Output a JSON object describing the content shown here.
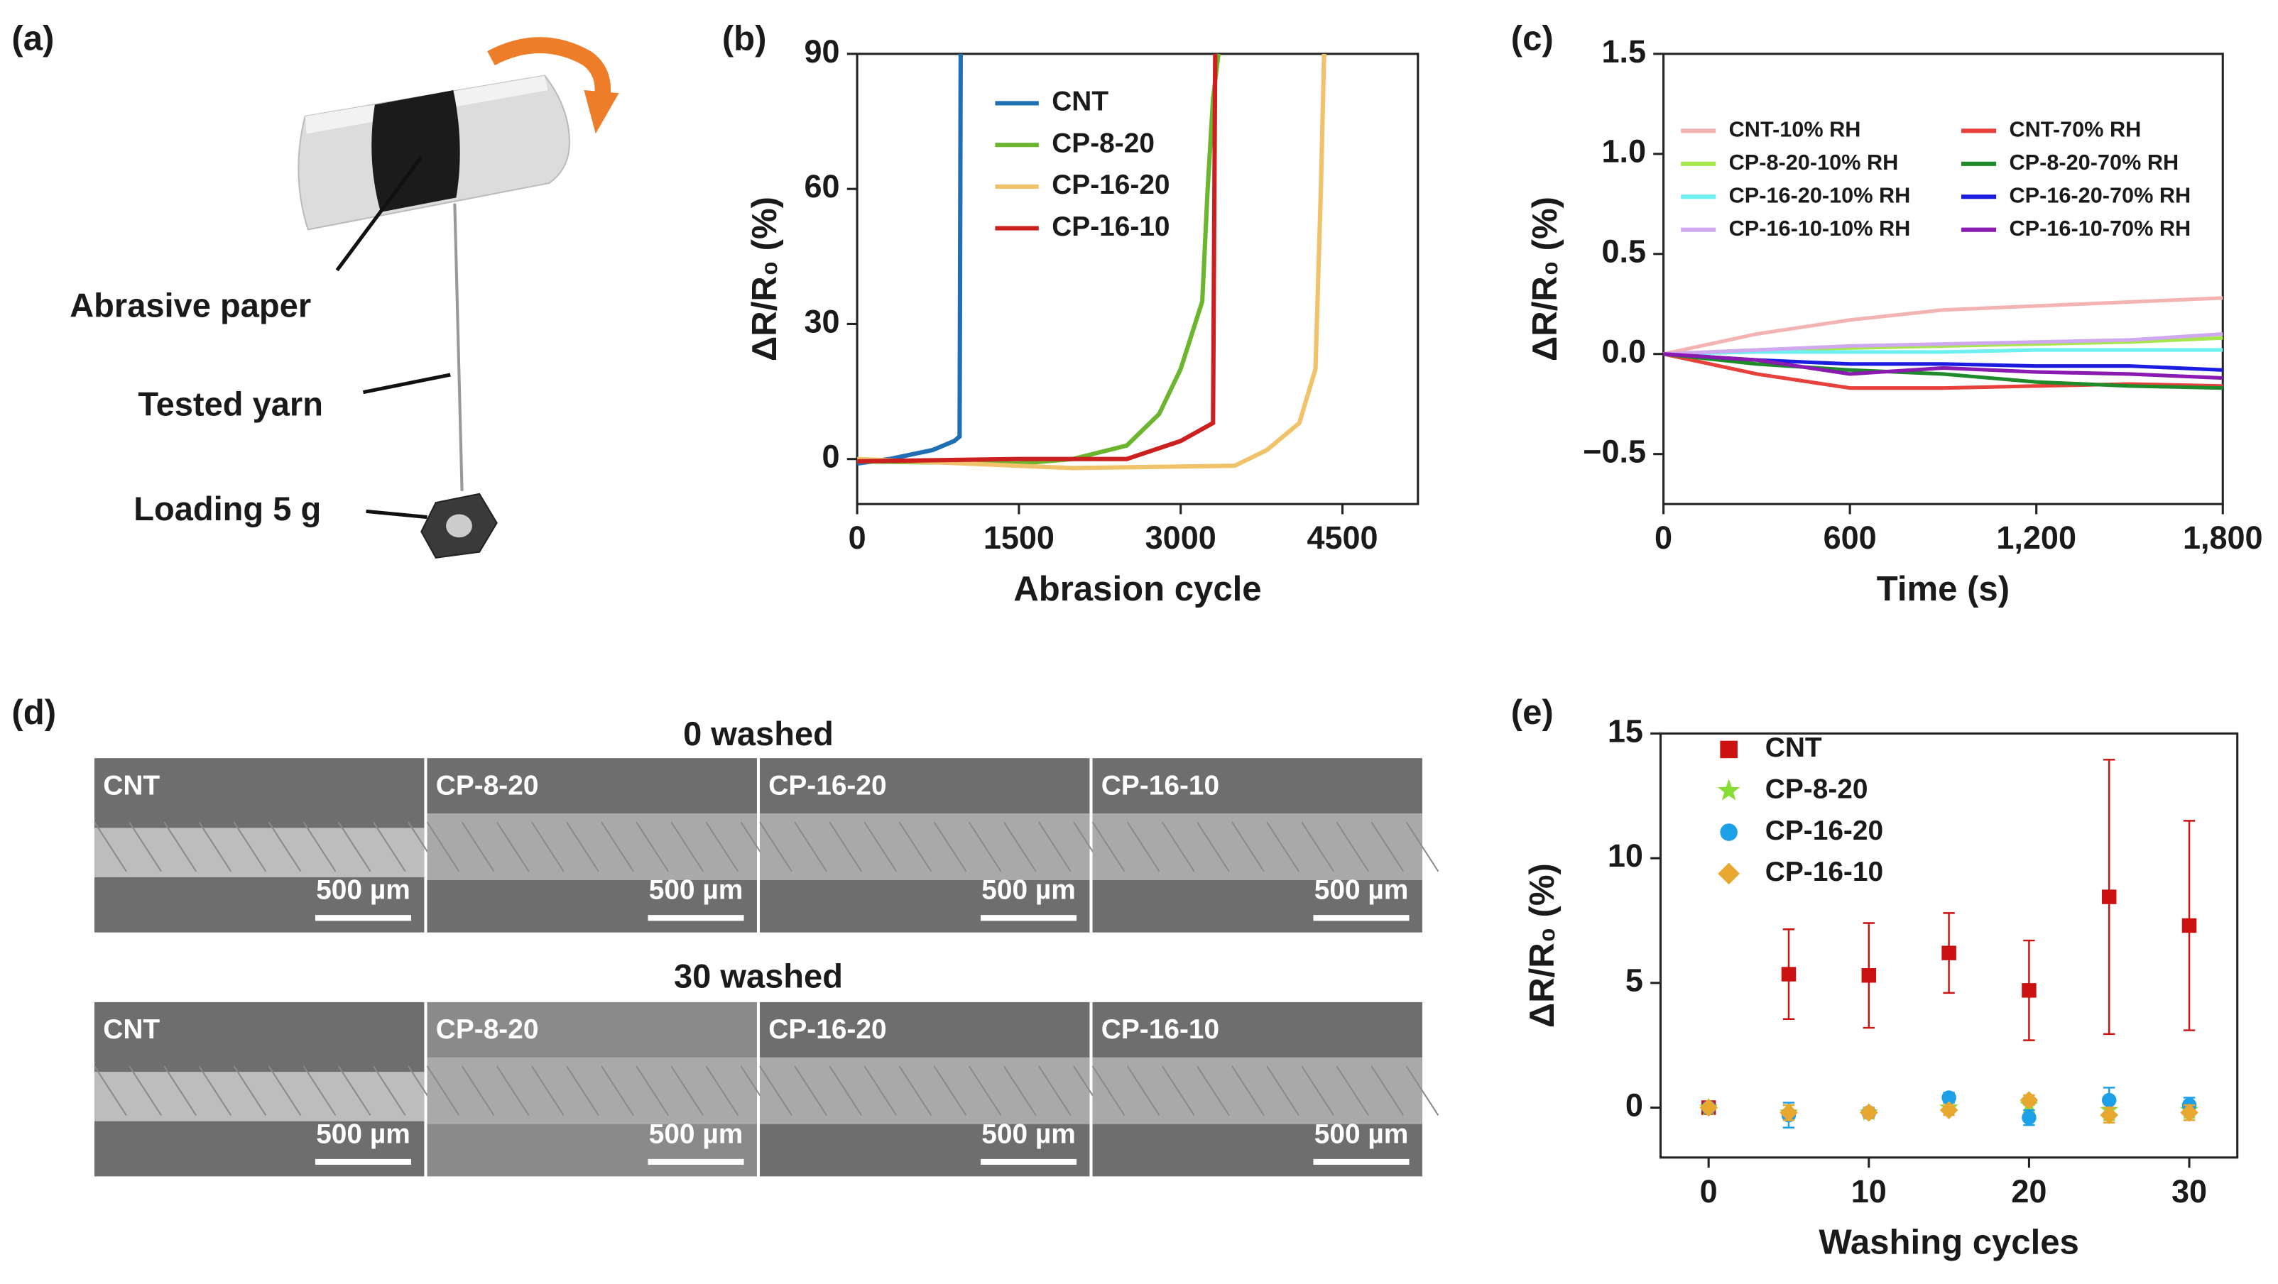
{
  "panels": {
    "a": {
      "label": "(a)",
      "annotations": [
        "Abrasive paper",
        "Tested yarn",
        "Loading 5 g"
      ]
    },
    "d": {
      "label": "(d)",
      "row_titles": [
        "0 washed",
        "30 washed"
      ],
      "images": [
        {
          "label": "CNT",
          "scale": "500 µm"
        },
        {
          "label": "CP-8-20",
          "scale": "500 µm"
        },
        {
          "label": "CP-16-20",
          "scale": "500 µm"
        },
        {
          "label": "CP-16-10",
          "scale": "500 µm"
        },
        {
          "label": "CNT",
          "scale": "500 µm"
        },
        {
          "label": "CP-8-20",
          "scale": "500 µm"
        },
        {
          "label": "CP-16-20",
          "scale": "500 µm"
        },
        {
          "label": "CP-16-10",
          "scale": "500 µm"
        }
      ]
    }
  },
  "chart_data": [
    {
      "type": "line",
      "panel_label": "(b)",
      "xlabel": "Abrasion cycle",
      "ylabel": "ΔR/R₀ (%)",
      "xlim": [
        0,
        5200
      ],
      "xticks": [
        0,
        1500,
        3000,
        4500
      ],
      "ylim": [
        -10,
        90
      ],
      "yticks": [
        0,
        30,
        60,
        90
      ],
      "series": [
        {
          "name": "CNT",
          "color": "#1f6fb4",
          "x": [
            0,
            300,
            500,
            700,
            900,
            950,
            960
          ],
          "values": [
            -1,
            0,
            1,
            2,
            4,
            5,
            90
          ]
        },
        {
          "name": "CP-8-20",
          "color": "#6cb52e",
          "x": [
            0,
            1500,
            2000,
            2500,
            2800,
            3000,
            3200,
            3250,
            3300,
            3350
          ],
          "values": [
            -0.5,
            -1,
            0,
            3,
            10,
            20,
            35,
            60,
            80,
            90
          ]
        },
        {
          "name": "CP-16-20",
          "color": "#f0c36a",
          "x": [
            0,
            2000,
            3500,
            3800,
            4100,
            4250,
            4300,
            4330
          ],
          "values": [
            0,
            -2,
            -1.5,
            2,
            8,
            20,
            60,
            90
          ]
        },
        {
          "name": "CP-16-10",
          "color": "#cc1f1f",
          "x": [
            0,
            1500,
            2500,
            3000,
            3300,
            3320
          ],
          "values": [
            -0.5,
            0,
            0,
            4,
            8,
            90
          ]
        }
      ]
    },
    {
      "type": "line",
      "panel_label": "(c)",
      "xlabel": "Time (s)",
      "ylabel": "ΔR/R₀ (%)",
      "xlim": [
        0,
        1800
      ],
      "xticks": [
        0,
        600,
        {
          "value": 1200,
          "label": "1,200"
        },
        {
          "value": 1800,
          "label": "1,800"
        }
      ],
      "ylim": [
        -0.75,
        1.5
      ],
      "yticks": [
        {
          "value": -0.5,
          "label": "−0.5"
        },
        {
          "value": 0,
          "label": "0.0"
        },
        0.5,
        {
          "value": 1,
          "label": "1.0"
        },
        1.5
      ],
      "x": [
        0,
        300,
        600,
        900,
        1200,
        1500,
        1800
      ],
      "series": [
        {
          "name": "CNT-10% RH",
          "color": "#f4b3b3",
          "values": [
            0,
            0.1,
            0.17,
            0.22,
            0.24,
            0.26,
            0.28
          ]
        },
        {
          "name": "CNT-70% RH",
          "color": "#e8413c",
          "values": [
            0,
            -0.1,
            -0.17,
            -0.17,
            -0.16,
            -0.15,
            -0.16
          ]
        },
        {
          "name": "CP-8-20-10% RH",
          "color": "#a6e64c",
          "values": [
            0,
            0.02,
            0.03,
            0.04,
            0.05,
            0.06,
            0.08
          ]
        },
        {
          "name": "CP-8-20-70% RH",
          "color": "#1e8a2a",
          "values": [
            0,
            -0.05,
            -0.08,
            -0.1,
            -0.14,
            -0.16,
            -0.17
          ]
        },
        {
          "name": "CP-16-20-10% RH",
          "color": "#6ef0f0",
          "values": [
            0,
            0.01,
            0.01,
            0.01,
            0.02,
            0.02,
            0.02
          ]
        },
        {
          "name": "CP-16-20-70% RH",
          "color": "#1c1ce0",
          "values": [
            0,
            -0.03,
            -0.05,
            -0.05,
            -0.06,
            -0.06,
            -0.08
          ]
        },
        {
          "name": "CP-16-10-10% RH",
          "color": "#d0a8f0",
          "values": [
            0,
            0.02,
            0.04,
            0.05,
            0.06,
            0.07,
            0.1
          ]
        },
        {
          "name": "CP-16-10-70% RH",
          "color": "#8a1ab0",
          "values": [
            0,
            -0.03,
            -0.1,
            -0.07,
            -0.09,
            -0.1,
            -0.12
          ]
        }
      ]
    },
    {
      "type": "scatter",
      "panel_label": "(e)",
      "xlabel": "Washing cycles",
      "ylabel": "ΔR/R₀ (%)",
      "xlim": [
        -3,
        33
      ],
      "xticks": [
        0,
        10,
        20,
        30
      ],
      "ylim": [
        -2,
        15
      ],
      "yticks": [
        0,
        5,
        10,
        15
      ],
      "x": [
        0,
        5,
        10,
        15,
        20,
        25,
        30
      ],
      "series": [
        {
          "name": "CNT",
          "color": "#cc1111",
          "marker": "square",
          "values": [
            0,
            5.35,
            5.3,
            6.2,
            4.7,
            8.45,
            7.3
          ],
          "errors": [
            0.2,
            1.8,
            2.1,
            1.6,
            2.0,
            5.5,
            4.2
          ]
        },
        {
          "name": "CP-8-20",
          "color": "#88dd33",
          "marker": "star",
          "values": [
            0,
            -0.2,
            -0.2,
            0,
            0.1,
            -0.1,
            -0.1
          ],
          "errors": [
            0.1,
            0.3,
            0.2,
            0.2,
            0.3,
            0.4,
            0.3
          ]
        },
        {
          "name": "CP-16-20",
          "color": "#1ea0e8",
          "marker": "circle",
          "values": [
            0,
            -0.3,
            -0.2,
            0.4,
            -0.4,
            0.3,
            0.1
          ],
          "errors": [
            0.1,
            0.5,
            0.2,
            0.2,
            0.3,
            0.5,
            0.3
          ]
        },
        {
          "name": "CP-16-10",
          "color": "#e8a830",
          "marker": "diamond",
          "values": [
            0,
            -0.2,
            -0.2,
            -0.1,
            0.3,
            -0.3,
            -0.2
          ],
          "errors": [
            0.1,
            0.3,
            0.2,
            0.2,
            0.2,
            0.3,
            0.3
          ]
        }
      ]
    }
  ]
}
